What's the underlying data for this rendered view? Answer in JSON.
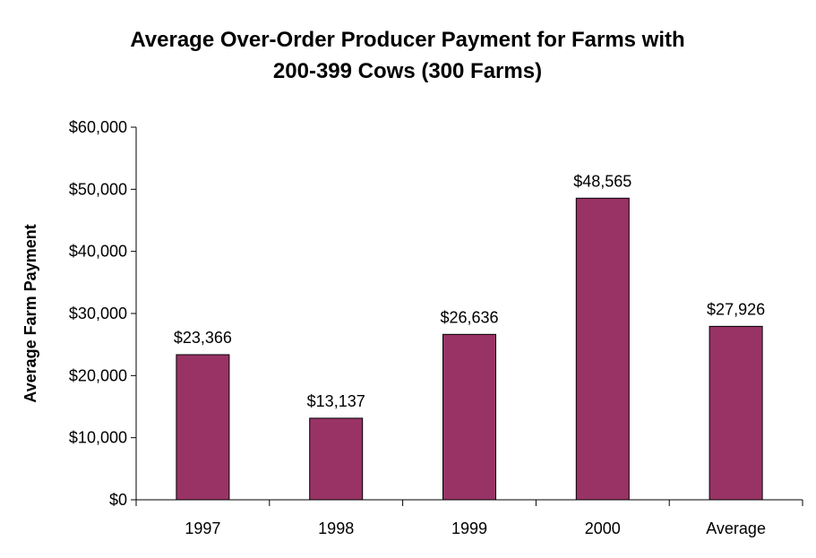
{
  "chart_data": {
    "type": "bar",
    "title": [
      "Average Over-Order Producer Payment for Farms with",
      "200-399 Cows (300 Farms)"
    ],
    "xlabel": "",
    "ylabel": "Average Farm Payment",
    "categories": [
      "1997",
      "1998",
      "1999",
      "2000",
      "Average"
    ],
    "values": [
      23366,
      13137,
      26636,
      48565,
      27926
    ],
    "data_labels": [
      "$23,366",
      "$13,137",
      "$26,636",
      "$48,565",
      "$27,926"
    ],
    "ylim": [
      0,
      60000
    ],
    "yticks": [
      0,
      10000,
      20000,
      30000,
      40000,
      50000,
      60000
    ],
    "ytick_labels": [
      "$0",
      "$10,000",
      "$20,000",
      "$30,000",
      "$40,000",
      "$50,000",
      "$60,000"
    ],
    "grid": false,
    "legend": "none",
    "bar_color": "#993366",
    "bar_edge_color": "#000000"
  }
}
